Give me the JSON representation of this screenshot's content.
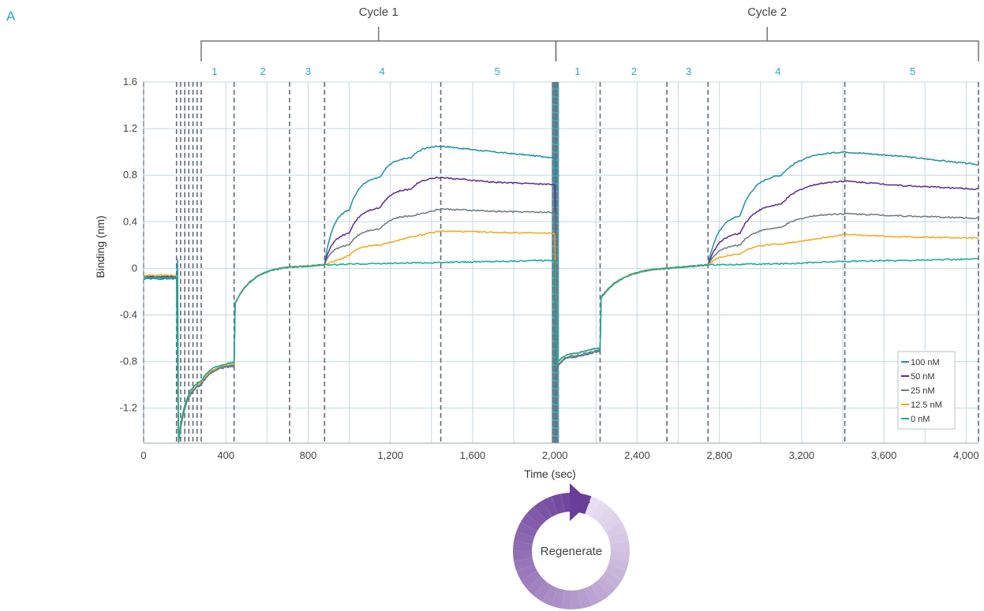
{
  "panel_label": "A",
  "cycles": [
    {
      "label": "Cycle 1",
      "t0": 280,
      "t1": 2005
    },
    {
      "label": "Cycle 2",
      "t0": 2005,
      "t1": 4060
    }
  ],
  "phases": [
    {
      "label": "1",
      "t": 345
    },
    {
      "label": "2",
      "t": 580
    },
    {
      "label": "3",
      "t": 800
    },
    {
      "label": "4",
      "t": 1160
    },
    {
      "label": "5",
      "t": 1720
    },
    {
      "label": "1",
      "t": 2110
    },
    {
      "label": "2",
      "t": 2385
    },
    {
      "label": "3",
      "t": 2650
    },
    {
      "label": "4",
      "t": 3085
    },
    {
      "label": "5",
      "t": 3740
    }
  ],
  "regenerate_label": "Regenerate",
  "colors": {
    "grid": "#c5d8e3",
    "axis": "#9aaab4",
    "dashed": "#5f6b74",
    "bracket": "#777777",
    "regen_dark": "#6a3d9a",
    "regen_light": "#e6dcef"
  },
  "chart_data": {
    "type": "line",
    "xlabel": "Time (sec)",
    "ylabel": "Binding (nm)",
    "xlim": [
      0,
      4060
    ],
    "ylim": [
      -1.5,
      1.6
    ],
    "grid": true,
    "legend_position": "bottom-right",
    "x_ticks": [
      {
        "v": 0,
        "label": "0"
      },
      {
        "v": 400,
        "label": "400"
      },
      {
        "v": 800,
        "label": "800"
      },
      {
        "v": 1200,
        "label": "1,200"
      },
      {
        "v": 1600,
        "label": "1,600"
      },
      {
        "v": 2000,
        "label": "2,000"
      },
      {
        "v": 2400,
        "label": "2,400"
      },
      {
        "v": 2800,
        "label": "2,800"
      },
      {
        "v": 3200,
        "label": "3,200"
      },
      {
        "v": 3600,
        "label": "3,600"
      },
      {
        "v": 4000,
        "label": "4,000"
      }
    ],
    "y_ticks": [
      {
        "v": 1.6,
        "label": "1.6"
      },
      {
        "v": 1.2,
        "label": "1.2"
      },
      {
        "v": 0.8,
        "label": "0.8"
      },
      {
        "v": 0.4,
        "label": "0.4"
      },
      {
        "v": 0,
        "label": "0"
      },
      {
        "v": -0.4,
        "label": "-0.4"
      },
      {
        "v": -0.8,
        "label": "-0.8"
      },
      {
        "v": -1.2,
        "label": "-1.2"
      }
    ],
    "phase_boundaries": [
      0,
      160,
      180,
      200,
      220,
      240,
      260,
      280,
      440,
      710,
      880,
      1445,
      2005,
      2220,
      2545,
      2745,
      3410,
      4060
    ],
    "step_events": [
      {
        "t": 170,
        "y_from": -0.08,
        "y_to": -1.5
      },
      {
        "t": 440,
        "y_from": -0.85,
        "y_to": -0.25
      },
      {
        "t": 2222,
        "y_from": -0.72,
        "y_to": -0.25
      }
    ],
    "series": [
      {
        "name": "100 nM",
        "color": "#1f8fa6",
        "points": [
          [
            0,
            -0.09
          ],
          [
            160,
            -0.09
          ],
          [
            165,
            0.07
          ],
          [
            170,
            -1.5
          ],
          [
            280,
            -1.0
          ],
          [
            440,
            -0.83
          ],
          [
            445,
            -0.3
          ],
          [
            710,
            0.01
          ],
          [
            880,
            0.03
          ],
          [
            1000,
            0.5
          ],
          [
            1150,
            0.78
          ],
          [
            1300,
            0.95
          ],
          [
            1445,
            1.05
          ],
          [
            1700,
            1.0
          ],
          [
            2000,
            0.95
          ],
          [
            2010,
            -0.85
          ],
          [
            2100,
            -0.75
          ],
          [
            2220,
            -0.7
          ],
          [
            2225,
            -0.25
          ],
          [
            2545,
            0.0
          ],
          [
            2745,
            0.03
          ],
          [
            2900,
            0.45
          ],
          [
            3100,
            0.8
          ],
          [
            3410,
            1.0
          ],
          [
            3700,
            0.96
          ],
          [
            4060,
            0.89
          ]
        ]
      },
      {
        "name": "50 nM",
        "color": "#5b2c8f",
        "points": [
          [
            0,
            -0.07
          ],
          [
            160,
            -0.07
          ],
          [
            170,
            -1.48
          ],
          [
            280,
            -1.0
          ],
          [
            440,
            -0.84
          ],
          [
            445,
            -0.3
          ],
          [
            710,
            0.01
          ],
          [
            880,
            0.03
          ],
          [
            1000,
            0.3
          ],
          [
            1150,
            0.52
          ],
          [
            1300,
            0.68
          ],
          [
            1445,
            0.78
          ],
          [
            1700,
            0.74
          ],
          [
            2000,
            0.72
          ],
          [
            2010,
            -0.85
          ],
          [
            2100,
            -0.76
          ],
          [
            2220,
            -0.71
          ],
          [
            2225,
            -0.25
          ],
          [
            2545,
            0.0
          ],
          [
            2745,
            0.03
          ],
          [
            2900,
            0.3
          ],
          [
            3100,
            0.55
          ],
          [
            3410,
            0.75
          ],
          [
            3700,
            0.71
          ],
          [
            4060,
            0.68
          ]
        ]
      },
      {
        "name": "25 nM",
        "color": "#6e7880",
        "points": [
          [
            0,
            -0.08
          ],
          [
            160,
            -0.08
          ],
          [
            170,
            -1.49
          ],
          [
            280,
            -1.0
          ],
          [
            440,
            -0.84
          ],
          [
            445,
            -0.3
          ],
          [
            710,
            0.01
          ],
          [
            880,
            0.03
          ],
          [
            1000,
            0.2
          ],
          [
            1150,
            0.34
          ],
          [
            1300,
            0.45
          ],
          [
            1445,
            0.51
          ],
          [
            1700,
            0.49
          ],
          [
            2000,
            0.48
          ],
          [
            2010,
            -0.85
          ],
          [
            2100,
            -0.76
          ],
          [
            2220,
            -0.71
          ],
          [
            2225,
            -0.25
          ],
          [
            2545,
            0.0
          ],
          [
            2745,
            0.03
          ],
          [
            2900,
            0.2
          ],
          [
            3100,
            0.35
          ],
          [
            3410,
            0.47
          ],
          [
            3700,
            0.45
          ],
          [
            4060,
            0.43
          ]
        ]
      },
      {
        "name": "12.5 nM",
        "color": "#f0a91b",
        "points": [
          [
            0,
            -0.06
          ],
          [
            160,
            -0.06
          ],
          [
            170,
            -1.47
          ],
          [
            280,
            -0.98
          ],
          [
            440,
            -0.82
          ],
          [
            445,
            -0.3
          ],
          [
            710,
            0.01
          ],
          [
            880,
            0.03
          ],
          [
            1000,
            0.11
          ],
          [
            1150,
            0.2
          ],
          [
            1300,
            0.27
          ],
          [
            1445,
            0.32
          ],
          [
            1700,
            0.31
          ],
          [
            2000,
            0.3
          ],
          [
            2010,
            -0.82
          ],
          [
            2100,
            -0.73
          ],
          [
            2220,
            -0.68
          ],
          [
            2225,
            -0.25
          ],
          [
            2545,
            0.0
          ],
          [
            2745,
            0.03
          ],
          [
            2900,
            0.12
          ],
          [
            3100,
            0.21
          ],
          [
            3410,
            0.29
          ],
          [
            3700,
            0.27
          ],
          [
            4060,
            0.26
          ]
        ]
      },
      {
        "name": "0 nM",
        "color": "#16a999",
        "points": [
          [
            0,
            -0.08
          ],
          [
            160,
            -0.08
          ],
          [
            170,
            -1.47
          ],
          [
            280,
            -0.97
          ],
          [
            440,
            -0.81
          ],
          [
            445,
            -0.3
          ],
          [
            710,
            0.01
          ],
          [
            880,
            0.03
          ],
          [
            1100,
            0.04
          ],
          [
            1445,
            0.05
          ],
          [
            2000,
            0.07
          ],
          [
            2010,
            -0.82
          ],
          [
            2100,
            -0.73
          ],
          [
            2220,
            -0.68
          ],
          [
            2225,
            -0.25
          ],
          [
            2545,
            0.0
          ],
          [
            2745,
            0.03
          ],
          [
            3100,
            0.04
          ],
          [
            3410,
            0.06
          ],
          [
            4060,
            0.08
          ]
        ]
      }
    ]
  }
}
